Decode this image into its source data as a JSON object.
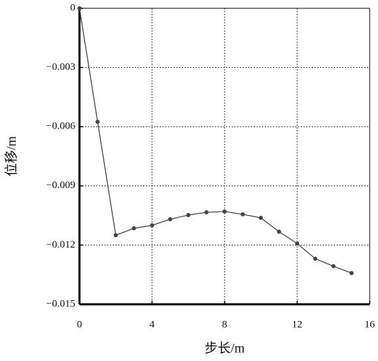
{
  "chart_data": {
    "type": "line",
    "x_label": "步长/m",
    "y_label": "位移/m",
    "x": [
      0,
      1,
      2,
      3,
      4,
      5,
      6,
      7,
      8,
      9,
      10,
      11,
      12,
      13,
      14,
      15
    ],
    "series": [
      {
        "color": "#444444",
        "values": [
          0,
          -0.00575,
          -0.0115,
          -0.01115,
          -0.011,
          -0.01069,
          -0.01048,
          -0.01034,
          -0.0103,
          -0.01044,
          -0.01062,
          -0.01132,
          -0.01192,
          -0.01269,
          -0.01307,
          -0.01342
        ]
      }
    ],
    "xlim": [
      0,
      16
    ],
    "xticks": [
      0,
      4,
      8,
      12,
      16
    ],
    "ylim": [
      -0.015,
      0
    ],
    "yticks": [
      {
        "value": -0.015,
        "label": "−0.015"
      },
      {
        "value": -0.012,
        "label": "−0.012"
      },
      {
        "value": -0.009,
        "label": "−0.009"
      },
      {
        "value": -0.006,
        "label": "−0.006"
      },
      {
        "value": -0.003,
        "label": "−0.003"
      },
      0
    ],
    "grid": true
  }
}
